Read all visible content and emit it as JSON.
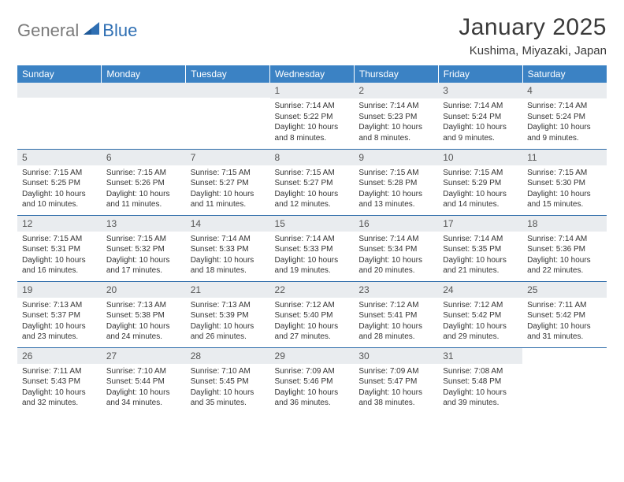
{
  "brand": {
    "general": "General",
    "blue": "Blue"
  },
  "title": "January 2025",
  "location": "Kushima, Miyazaki, Japan",
  "weekdays": [
    "Sunday",
    "Monday",
    "Tuesday",
    "Wednesday",
    "Thursday",
    "Friday",
    "Saturday"
  ],
  "colors": {
    "header_bg": "#3b82c4",
    "header_text": "#ffffff",
    "rule": "#2b6aa8",
    "daynum_bg": "#e9ecef",
    "logo_gray": "#7a7a7a",
    "logo_blue": "#2f6fb3"
  },
  "weeks": [
    [
      {
        "n": "",
        "lines": []
      },
      {
        "n": "",
        "lines": []
      },
      {
        "n": "",
        "lines": []
      },
      {
        "n": "1",
        "lines": [
          "Sunrise: 7:14 AM",
          "Sunset: 5:22 PM",
          "Daylight: 10 hours and 8 minutes."
        ]
      },
      {
        "n": "2",
        "lines": [
          "Sunrise: 7:14 AM",
          "Sunset: 5:23 PM",
          "Daylight: 10 hours and 8 minutes."
        ]
      },
      {
        "n": "3",
        "lines": [
          "Sunrise: 7:14 AM",
          "Sunset: 5:24 PM",
          "Daylight: 10 hours and 9 minutes."
        ]
      },
      {
        "n": "4",
        "lines": [
          "Sunrise: 7:14 AM",
          "Sunset: 5:24 PM",
          "Daylight: 10 hours and 9 minutes."
        ]
      }
    ],
    [
      {
        "n": "5",
        "lines": [
          "Sunrise: 7:15 AM",
          "Sunset: 5:25 PM",
          "Daylight: 10 hours and 10 minutes."
        ]
      },
      {
        "n": "6",
        "lines": [
          "Sunrise: 7:15 AM",
          "Sunset: 5:26 PM",
          "Daylight: 10 hours and 11 minutes."
        ]
      },
      {
        "n": "7",
        "lines": [
          "Sunrise: 7:15 AM",
          "Sunset: 5:27 PM",
          "Daylight: 10 hours and 11 minutes."
        ]
      },
      {
        "n": "8",
        "lines": [
          "Sunrise: 7:15 AM",
          "Sunset: 5:27 PM",
          "Daylight: 10 hours and 12 minutes."
        ]
      },
      {
        "n": "9",
        "lines": [
          "Sunrise: 7:15 AM",
          "Sunset: 5:28 PM",
          "Daylight: 10 hours and 13 minutes."
        ]
      },
      {
        "n": "10",
        "lines": [
          "Sunrise: 7:15 AM",
          "Sunset: 5:29 PM",
          "Daylight: 10 hours and 14 minutes."
        ]
      },
      {
        "n": "11",
        "lines": [
          "Sunrise: 7:15 AM",
          "Sunset: 5:30 PM",
          "Daylight: 10 hours and 15 minutes."
        ]
      }
    ],
    [
      {
        "n": "12",
        "lines": [
          "Sunrise: 7:15 AM",
          "Sunset: 5:31 PM",
          "Daylight: 10 hours and 16 minutes."
        ]
      },
      {
        "n": "13",
        "lines": [
          "Sunrise: 7:15 AM",
          "Sunset: 5:32 PM",
          "Daylight: 10 hours and 17 minutes."
        ]
      },
      {
        "n": "14",
        "lines": [
          "Sunrise: 7:14 AM",
          "Sunset: 5:33 PM",
          "Daylight: 10 hours and 18 minutes."
        ]
      },
      {
        "n": "15",
        "lines": [
          "Sunrise: 7:14 AM",
          "Sunset: 5:33 PM",
          "Daylight: 10 hours and 19 minutes."
        ]
      },
      {
        "n": "16",
        "lines": [
          "Sunrise: 7:14 AM",
          "Sunset: 5:34 PM",
          "Daylight: 10 hours and 20 minutes."
        ]
      },
      {
        "n": "17",
        "lines": [
          "Sunrise: 7:14 AM",
          "Sunset: 5:35 PM",
          "Daylight: 10 hours and 21 minutes."
        ]
      },
      {
        "n": "18",
        "lines": [
          "Sunrise: 7:14 AM",
          "Sunset: 5:36 PM",
          "Daylight: 10 hours and 22 minutes."
        ]
      }
    ],
    [
      {
        "n": "19",
        "lines": [
          "Sunrise: 7:13 AM",
          "Sunset: 5:37 PM",
          "Daylight: 10 hours and 23 minutes."
        ]
      },
      {
        "n": "20",
        "lines": [
          "Sunrise: 7:13 AM",
          "Sunset: 5:38 PM",
          "Daylight: 10 hours and 24 minutes."
        ]
      },
      {
        "n": "21",
        "lines": [
          "Sunrise: 7:13 AM",
          "Sunset: 5:39 PM",
          "Daylight: 10 hours and 26 minutes."
        ]
      },
      {
        "n": "22",
        "lines": [
          "Sunrise: 7:12 AM",
          "Sunset: 5:40 PM",
          "Daylight: 10 hours and 27 minutes."
        ]
      },
      {
        "n": "23",
        "lines": [
          "Sunrise: 7:12 AM",
          "Sunset: 5:41 PM",
          "Daylight: 10 hours and 28 minutes."
        ]
      },
      {
        "n": "24",
        "lines": [
          "Sunrise: 7:12 AM",
          "Sunset: 5:42 PM",
          "Daylight: 10 hours and 29 minutes."
        ]
      },
      {
        "n": "25",
        "lines": [
          "Sunrise: 7:11 AM",
          "Sunset: 5:42 PM",
          "Daylight: 10 hours and 31 minutes."
        ]
      }
    ],
    [
      {
        "n": "26",
        "lines": [
          "Sunrise: 7:11 AM",
          "Sunset: 5:43 PM",
          "Daylight: 10 hours and 32 minutes."
        ]
      },
      {
        "n": "27",
        "lines": [
          "Sunrise: 7:10 AM",
          "Sunset: 5:44 PM",
          "Daylight: 10 hours and 34 minutes."
        ]
      },
      {
        "n": "28",
        "lines": [
          "Sunrise: 7:10 AM",
          "Sunset: 5:45 PM",
          "Daylight: 10 hours and 35 minutes."
        ]
      },
      {
        "n": "29",
        "lines": [
          "Sunrise: 7:09 AM",
          "Sunset: 5:46 PM",
          "Daylight: 10 hours and 36 minutes."
        ]
      },
      {
        "n": "30",
        "lines": [
          "Sunrise: 7:09 AM",
          "Sunset: 5:47 PM",
          "Daylight: 10 hours and 38 minutes."
        ]
      },
      {
        "n": "31",
        "lines": [
          "Sunrise: 7:08 AM",
          "Sunset: 5:48 PM",
          "Daylight: 10 hours and 39 minutes."
        ]
      },
      {
        "n": "",
        "lines": []
      }
    ]
  ]
}
